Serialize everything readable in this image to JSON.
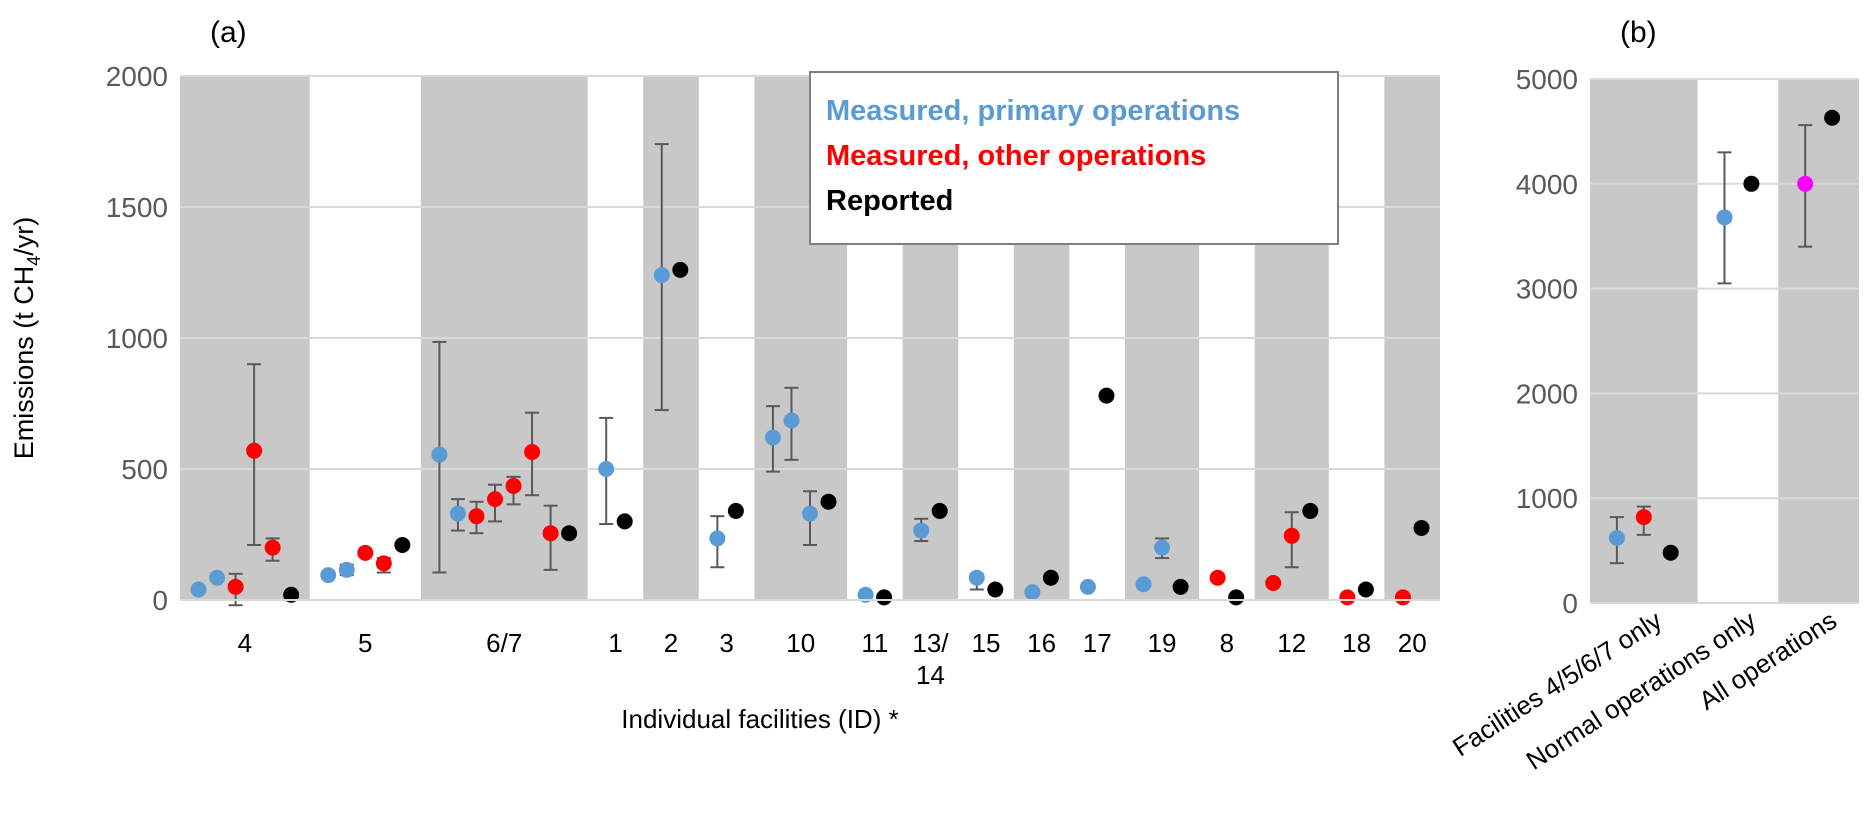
{
  "colors": {
    "primary": "#5b9bd5",
    "other": "#ff0000",
    "reported": "#000000",
    "all": "#ff00ff",
    "band": "#c8c8c8",
    "grid": "#d9d9d9",
    "errbar": "#595959"
  },
  "chart_data": [
    {
      "type": "scatter",
      "panel_label": "(a)",
      "ylabel": "Emissions (t CH4/yr)",
      "ylabel_parts": {
        "pre": "Emissions (t CH",
        "sub": "4",
        "post": "/yr)"
      },
      "xlabel": "Individual facilities (ID) *",
      "ylim": [
        0,
        2000
      ],
      "yticks": [
        0,
        500,
        1000,
        1500,
        2000
      ],
      "grid": true,
      "legend": {
        "placement": "top-right",
        "entries": [
          {
            "label": "Measured, primary operations",
            "series": "primary"
          },
          {
            "label": "Measured, other operations",
            "series": "other"
          },
          {
            "label": "Reported",
            "series": "reported"
          }
        ]
      },
      "categories": [
        {
          "id": "4",
          "points": [
            {
              "s": "primary",
              "v": 40
            },
            {
              "s": "primary",
              "v": 85
            },
            {
              "s": "other",
              "v": 50,
              "lo": -20,
              "hi": 100
            },
            {
              "s": "other",
              "v": 570,
              "lo": 210,
              "hi": 900
            },
            {
              "s": "other",
              "v": 200,
              "lo": 150,
              "hi": 235
            },
            {
              "s": "reported",
              "v": 20
            }
          ]
        },
        {
          "id": "5",
          "points": [
            {
              "s": "primary",
              "v": 95
            },
            {
              "s": "primary",
              "v": 115,
              "lo": 95,
              "hi": 135
            },
            {
              "s": "other",
              "v": 180
            },
            {
              "s": "other",
              "v": 140,
              "lo": 105,
              "hi": 160
            },
            {
              "s": "reported",
              "v": 210
            }
          ]
        },
        {
          "id": "6/7",
          "points": [
            {
              "s": "primary",
              "v": 555,
              "lo": 105,
              "hi": 985
            },
            {
              "s": "primary",
              "v": 330,
              "lo": 265,
              "hi": 385
            },
            {
              "s": "other",
              "v": 320,
              "lo": 255,
              "hi": 375
            },
            {
              "s": "other",
              "v": 385,
              "lo": 300,
              "hi": 440
            },
            {
              "s": "other",
              "v": 435,
              "lo": 365,
              "hi": 470
            },
            {
              "s": "other",
              "v": 565,
              "lo": 400,
              "hi": 715
            },
            {
              "s": "other",
              "v": 255,
              "lo": 115,
              "hi": 360
            },
            {
              "s": "reported",
              "v": 255
            }
          ]
        },
        {
          "id": "1",
          "points": [
            {
              "s": "primary",
              "v": 500,
              "lo": 290,
              "hi": 695
            },
            {
              "s": "reported",
              "v": 300
            }
          ]
        },
        {
          "id": "2",
          "points": [
            {
              "s": "primary",
              "v": 1240,
              "lo": 725,
              "hi": 1740
            },
            {
              "s": "reported",
              "v": 1260
            }
          ]
        },
        {
          "id": "3",
          "points": [
            {
              "s": "primary",
              "v": 235,
              "lo": 125,
              "hi": 320
            },
            {
              "s": "reported",
              "v": 340
            }
          ]
        },
        {
          "id": "10",
          "points": [
            {
              "s": "primary",
              "v": 620,
              "lo": 490,
              "hi": 740
            },
            {
              "s": "primary",
              "v": 685,
              "lo": 535,
              "hi": 810
            },
            {
              "s": "primary",
              "v": 330,
              "lo": 210,
              "hi": 415
            },
            {
              "s": "reported",
              "v": 375
            }
          ]
        },
        {
          "id": "11",
          "points": [
            {
              "s": "primary",
              "v": 20
            },
            {
              "s": "reported",
              "v": 10
            }
          ]
        },
        {
          "id": "13/ 14",
          "line1": "13/",
          "line2": "14",
          "points": [
            {
              "s": "primary",
              "v": 265,
              "lo": 225,
              "hi": 310
            },
            {
              "s": "reported",
              "v": 340
            }
          ]
        },
        {
          "id": "15",
          "points": [
            {
              "s": "primary",
              "v": 85,
              "lo": 40,
              "hi": 100
            },
            {
              "s": "reported",
              "v": 40
            }
          ]
        },
        {
          "id": "16",
          "points": [
            {
              "s": "primary",
              "v": 30
            },
            {
              "s": "reported",
              "v": 85
            }
          ]
        },
        {
          "id": "17",
          "points": [
            {
              "s": "primary",
              "v": 50
            },
            {
              "s": "reported",
              "v": 780
            }
          ]
        },
        {
          "id": "19",
          "points": [
            {
              "s": "primary",
              "v": 60
            },
            {
              "s": "primary",
              "v": 200,
              "lo": 160,
              "hi": 235
            },
            {
              "s": "reported",
              "v": 50
            }
          ]
        },
        {
          "id": "8",
          "points": [
            {
              "s": "other",
              "v": 85
            },
            {
              "s": "reported",
              "v": 10
            }
          ]
        },
        {
          "id": "12",
          "points": [
            {
              "s": "other",
              "v": 65
            },
            {
              "s": "other",
              "v": 245,
              "lo": 125,
              "hi": 335
            },
            {
              "s": "reported",
              "v": 340
            }
          ]
        },
        {
          "id": "18",
          "points": [
            {
              "s": "other",
              "v": 10
            },
            {
              "s": "reported",
              "v": 40
            }
          ]
        },
        {
          "id": "20",
          "points": [
            {
              "s": "other",
              "v": 10
            },
            {
              "s": "reported",
              "v": 275
            }
          ]
        }
      ]
    },
    {
      "type": "scatter",
      "panel_label": "(b)",
      "ylim": [
        0,
        5000
      ],
      "yticks": [
        0,
        1000,
        2000,
        3000,
        4000,
        5000
      ],
      "grid": true,
      "categories": [
        {
          "id": "Facilities 4/5/6/7 only",
          "points": [
            {
              "s": "primary",
              "v": 620,
              "lo": 380,
              "hi": 820
            },
            {
              "s": "other",
              "v": 820,
              "lo": 650,
              "hi": 920
            },
            {
              "s": "reported",
              "v": 480
            }
          ]
        },
        {
          "id": "Normal operations only",
          "points": [
            {
              "s": "primary",
              "v": 3680,
              "lo": 3050,
              "hi": 4300
            },
            {
              "s": "reported",
              "v": 4000
            }
          ]
        },
        {
          "id": "All operations",
          "points": [
            {
              "s": "all",
              "v": 4000,
              "lo": 3400,
              "hi": 4560
            },
            {
              "s": "reported",
              "v": 4630
            }
          ]
        }
      ]
    }
  ]
}
